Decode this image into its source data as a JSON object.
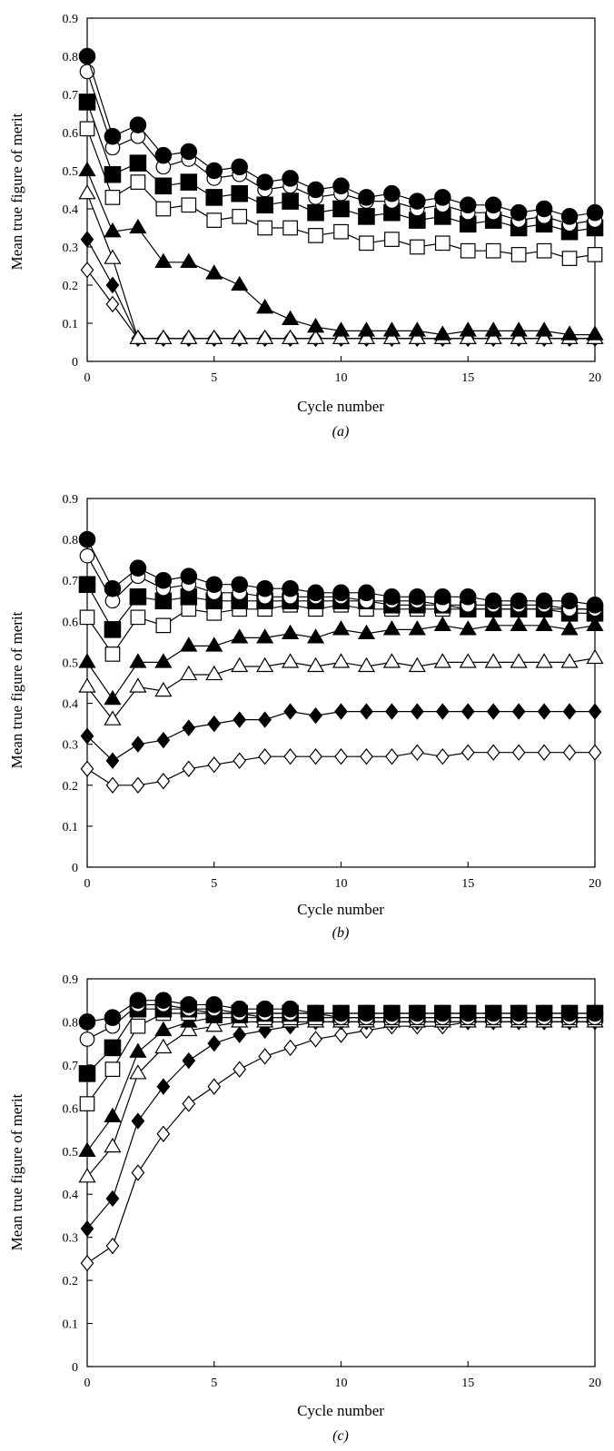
{
  "chart_data": [
    {
      "type": "line",
      "panel_label": "(a)",
      "xlabel": "Cycle number",
      "ylabel": "Mean true figure of merit",
      "xlim": [
        0,
        20
      ],
      "ylim": [
        0,
        0.9
      ],
      "x_ticks": [
        0,
        5,
        10,
        15,
        20
      ],
      "y_ticks": [
        0,
        0.1,
        0.2,
        0.3,
        0.4,
        0.5,
        0.6,
        0.7,
        0.8,
        0.9
      ],
      "grid": false,
      "legend": "none",
      "x": [
        0,
        1,
        2,
        3,
        4,
        5,
        6,
        7,
        8,
        9,
        10,
        11,
        12,
        13,
        14,
        15,
        16,
        17,
        18,
        19,
        20
      ],
      "series": [
        {
          "marker": "filled-circle",
          "values": [
            0.8,
            0.59,
            0.62,
            0.54,
            0.55,
            0.5,
            0.51,
            0.47,
            0.48,
            0.45,
            0.46,
            0.43,
            0.44,
            0.42,
            0.43,
            0.41,
            0.41,
            0.39,
            0.4,
            0.38,
            0.39
          ]
        },
        {
          "marker": "open-circle",
          "values": [
            0.76,
            0.56,
            0.59,
            0.51,
            0.53,
            0.48,
            0.49,
            0.45,
            0.46,
            0.43,
            0.44,
            0.42,
            0.42,
            0.4,
            0.41,
            0.39,
            0.39,
            0.37,
            0.38,
            0.36,
            0.37
          ]
        },
        {
          "marker": "filled-square",
          "values": [
            0.68,
            0.49,
            0.52,
            0.46,
            0.47,
            0.43,
            0.44,
            0.41,
            0.42,
            0.39,
            0.4,
            0.38,
            0.39,
            0.37,
            0.38,
            0.36,
            0.37,
            0.35,
            0.36,
            0.34,
            0.35
          ]
        },
        {
          "marker": "open-square",
          "values": [
            0.61,
            0.43,
            0.47,
            0.4,
            0.41,
            0.37,
            0.38,
            0.35,
            0.35,
            0.33,
            0.34,
            0.31,
            0.32,
            0.3,
            0.31,
            0.29,
            0.29,
            0.28,
            0.29,
            0.27,
            0.28
          ]
        },
        {
          "marker": "filled-triangle",
          "values": [
            0.5,
            0.34,
            0.35,
            0.26,
            0.26,
            0.23,
            0.2,
            0.14,
            0.11,
            0.09,
            0.08,
            0.08,
            0.08,
            0.08,
            0.07,
            0.08,
            0.08,
            0.08,
            0.08,
            0.07,
            0.07
          ]
        },
        {
          "marker": "open-triangle",
          "values": [
            0.44,
            0.27,
            0.06,
            0.06,
            0.06,
            0.06,
            0.06,
            0.06,
            0.06,
            0.06,
            0.06,
            0.06,
            0.06,
            0.06,
            0.06,
            0.06,
            0.06,
            0.06,
            0.06,
            0.06,
            0.06
          ]
        },
        {
          "marker": "filled-diamond",
          "values": [
            0.32,
            0.2,
            0.06,
            0.06,
            0.06,
            0.06,
            0.06,
            0.06,
            0.06,
            0.06,
            0.06,
            0.06,
            0.06,
            0.06,
            0.06,
            0.06,
            0.06,
            0.06,
            0.06,
            0.06,
            0.06
          ]
        },
        {
          "marker": "open-diamond",
          "values": [
            0.24,
            0.15,
            0.06,
            0.06,
            0.06,
            0.06,
            0.06,
            0.06,
            0.06,
            0.06,
            0.06,
            0.06,
            0.06,
            0.06,
            0.06,
            0.06,
            0.06,
            0.06,
            0.06,
            0.06,
            0.06
          ]
        }
      ]
    },
    {
      "type": "line",
      "panel_label": "(b)",
      "xlabel": "Cycle number",
      "ylabel": "Mean true figure of merit",
      "xlim": [
        0,
        20
      ],
      "ylim": [
        0,
        0.9
      ],
      "x_ticks": [
        0,
        5,
        10,
        15,
        20
      ],
      "y_ticks": [
        0,
        0.1,
        0.2,
        0.3,
        0.4,
        0.5,
        0.6,
        0.7,
        0.8,
        0.9
      ],
      "grid": false,
      "legend": "none",
      "x": [
        0,
        1,
        2,
        3,
        4,
        5,
        6,
        7,
        8,
        9,
        10,
        11,
        12,
        13,
        14,
        15,
        16,
        17,
        18,
        19,
        20
      ],
      "series": [
        {
          "marker": "filled-circle",
          "values": [
            0.8,
            0.68,
            0.73,
            0.7,
            0.71,
            0.69,
            0.69,
            0.68,
            0.68,
            0.67,
            0.67,
            0.67,
            0.66,
            0.66,
            0.66,
            0.66,
            0.65,
            0.65,
            0.65,
            0.65,
            0.64
          ]
        },
        {
          "marker": "open-circle",
          "values": [
            0.76,
            0.65,
            0.71,
            0.68,
            0.69,
            0.67,
            0.67,
            0.66,
            0.66,
            0.66,
            0.66,
            0.65,
            0.65,
            0.65,
            0.64,
            0.64,
            0.64,
            0.64,
            0.64,
            0.63,
            0.63
          ]
        },
        {
          "marker": "filled-square",
          "values": [
            0.69,
            0.58,
            0.66,
            0.65,
            0.66,
            0.65,
            0.65,
            0.65,
            0.65,
            0.65,
            0.65,
            0.65,
            0.64,
            0.64,
            0.64,
            0.63,
            0.63,
            0.63,
            0.63,
            0.62,
            0.62
          ]
        },
        {
          "marker": "open-square",
          "values": [
            0.61,
            0.52,
            0.61,
            0.59,
            0.63,
            0.62,
            0.63,
            0.63,
            0.64,
            0.63,
            0.64,
            0.63,
            0.63,
            0.63,
            0.63,
            0.63,
            0.63,
            0.63,
            0.63,
            0.63,
            0.63
          ]
        },
        {
          "marker": "filled-triangle",
          "values": [
            0.5,
            0.41,
            0.5,
            0.5,
            0.54,
            0.54,
            0.56,
            0.56,
            0.57,
            0.56,
            0.58,
            0.57,
            0.58,
            0.58,
            0.59,
            0.58,
            0.59,
            0.59,
            0.59,
            0.58,
            0.59
          ]
        },
        {
          "marker": "open-triangle",
          "values": [
            0.44,
            0.36,
            0.44,
            0.43,
            0.47,
            0.47,
            0.49,
            0.49,
            0.5,
            0.49,
            0.5,
            0.49,
            0.5,
            0.49,
            0.5,
            0.5,
            0.5,
            0.5,
            0.5,
            0.5,
            0.51
          ]
        },
        {
          "marker": "filled-diamond",
          "values": [
            0.32,
            0.26,
            0.3,
            0.31,
            0.34,
            0.35,
            0.36,
            0.36,
            0.38,
            0.37,
            0.38,
            0.38,
            0.38,
            0.38,
            0.38,
            0.38,
            0.38,
            0.38,
            0.38,
            0.38,
            0.38
          ]
        },
        {
          "marker": "open-diamond",
          "values": [
            0.24,
            0.2,
            0.2,
            0.21,
            0.24,
            0.25,
            0.26,
            0.27,
            0.27,
            0.27,
            0.27,
            0.27,
            0.27,
            0.28,
            0.27,
            0.28,
            0.28,
            0.28,
            0.28,
            0.28,
            0.28
          ]
        }
      ]
    },
    {
      "type": "line",
      "panel_label": "(c)",
      "xlabel": "Cycle number",
      "ylabel": "Mean true figure of merit",
      "xlim": [
        0,
        20
      ],
      "ylim": [
        0,
        0.9
      ],
      "x_ticks": [
        0,
        5,
        10,
        15,
        20
      ],
      "y_ticks": [
        0,
        0.1,
        0.2,
        0.3,
        0.4,
        0.5,
        0.6,
        0.7,
        0.8,
        0.9
      ],
      "grid": false,
      "legend": "none",
      "x": [
        0,
        1,
        2,
        3,
        4,
        5,
        6,
        7,
        8,
        9,
        10,
        11,
        12,
        13,
        14,
        15,
        16,
        17,
        18,
        19,
        20
      ],
      "series": [
        {
          "marker": "filled-circle",
          "values": [
            0.8,
            0.81,
            0.85,
            0.85,
            0.84,
            0.84,
            0.83,
            0.83,
            0.83,
            0.82,
            0.82,
            0.82,
            0.82,
            0.82,
            0.82,
            0.82,
            0.82,
            0.82,
            0.82,
            0.82,
            0.82
          ]
        },
        {
          "marker": "open-circle",
          "values": [
            0.76,
            0.79,
            0.84,
            0.84,
            0.83,
            0.83,
            0.82,
            0.82,
            0.82,
            0.82,
            0.81,
            0.81,
            0.81,
            0.81,
            0.81,
            0.81,
            0.81,
            0.81,
            0.81,
            0.81,
            0.81
          ]
        },
        {
          "marker": "filled-square",
          "values": [
            0.68,
            0.74,
            0.83,
            0.83,
            0.83,
            0.82,
            0.82,
            0.82,
            0.82,
            0.82,
            0.82,
            0.82,
            0.82,
            0.82,
            0.82,
            0.82,
            0.82,
            0.82,
            0.82,
            0.82,
            0.82
          ]
        },
        {
          "marker": "open-square",
          "values": [
            0.61,
            0.69,
            0.79,
            0.82,
            0.82,
            0.82,
            0.82,
            0.81,
            0.81,
            0.81,
            0.81,
            0.81,
            0.81,
            0.81,
            0.81,
            0.81,
            0.81,
            0.81,
            0.81,
            0.81,
            0.81
          ]
        },
        {
          "marker": "filled-triangle",
          "values": [
            0.5,
            0.58,
            0.73,
            0.78,
            0.8,
            0.81,
            0.81,
            0.81,
            0.81,
            0.81,
            0.81,
            0.81,
            0.81,
            0.81,
            0.81,
            0.81,
            0.81,
            0.81,
            0.81,
            0.81,
            0.81
          ]
        },
        {
          "marker": "open-triangle",
          "values": [
            0.44,
            0.51,
            0.68,
            0.74,
            0.78,
            0.79,
            0.8,
            0.8,
            0.8,
            0.8,
            0.8,
            0.8,
            0.8,
            0.8,
            0.8,
            0.8,
            0.8,
            0.8,
            0.8,
            0.8,
            0.8
          ]
        },
        {
          "marker": "filled-diamond",
          "values": [
            0.32,
            0.39,
            0.57,
            0.65,
            0.71,
            0.75,
            0.77,
            0.78,
            0.79,
            0.8,
            0.8,
            0.8,
            0.8,
            0.8,
            0.8,
            0.8,
            0.8,
            0.8,
            0.8,
            0.8,
            0.8
          ]
        },
        {
          "marker": "open-diamond",
          "values": [
            0.24,
            0.28,
            0.45,
            0.54,
            0.61,
            0.65,
            0.69,
            0.72,
            0.74,
            0.76,
            0.77,
            0.78,
            0.79,
            0.79,
            0.79,
            0.8,
            0.8,
            0.8,
            0.8,
            0.8,
            0.8
          ]
        }
      ]
    }
  ]
}
